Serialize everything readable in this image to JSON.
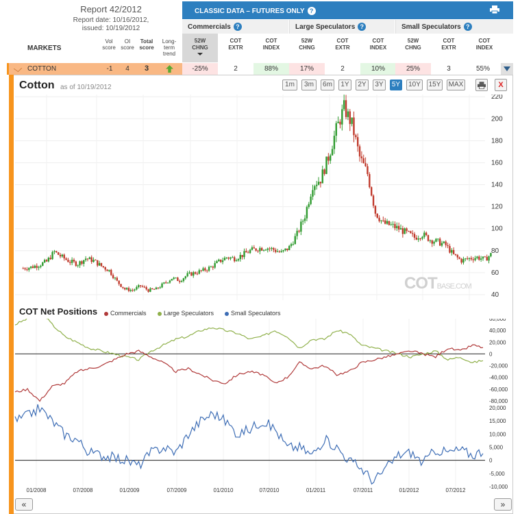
{
  "report": {
    "title": "Report 42/2012",
    "date_line": "Report date: 10/16/2012,",
    "issued_line": "issued: 10/19/2012",
    "markets_label": "MARKETS",
    "col_vol": [
      "Vol",
      "score"
    ],
    "col_oi": [
      "OI",
      "score"
    ],
    "col_total": [
      "Total",
      "score"
    ],
    "col_trend": [
      "Long-",
      "term",
      "trend"
    ]
  },
  "classic": {
    "title": "CLASSIC DATA – FUTURES ONLY",
    "help": "?",
    "groups": [
      "Commercials",
      "Large Speculators",
      "Small Speculators"
    ],
    "sub_headers": [
      [
        "52W",
        "CHNG"
      ],
      [
        "COT",
        "EXTR"
      ],
      [
        "COT",
        "INDEX"
      ]
    ]
  },
  "market_row": {
    "name": "COTTON",
    "vol_score": "-1",
    "oi_score": "4",
    "total_score": "3",
    "values": [
      "-25%",
      "2",
      "88%",
      "17%",
      "2",
      "10%",
      "25%",
      "3",
      "55%"
    ],
    "value_colors": [
      "#fde3e3",
      "#ffffff",
      "#e3f7e3",
      "#fde3e3",
      "#ffffff",
      "#e3f7e3",
      "#fde3e3",
      "#ffffff",
      "#ffffff"
    ]
  },
  "chart_header": {
    "title": "Cotton",
    "as_of": "as of 10/19/2012",
    "zoom": [
      "1m",
      "3m",
      "6m",
      "1Y",
      "2Y",
      "3Y",
      "5Y",
      "10Y",
      "15Y",
      "MAX"
    ],
    "active_zoom": "5Y",
    "print_icon": "printer-icon",
    "close_label": "X"
  },
  "cot_section": {
    "title": "COT Net Positions",
    "legend": [
      "Commercials",
      "Large Speculators",
      "Small Speculators"
    ]
  },
  "watermark": {
    "main": "COT",
    "sub": "BASE.COM"
  },
  "nav": {
    "prev": "«",
    "next": "»"
  },
  "colors": {
    "accent": "#2d7fbf",
    "orange": "#f7941d",
    "commercials": "#b03a3a",
    "large_spec": "#8fb04a",
    "small_spec": "#3d6db5",
    "candle_up": "#2e9a2e",
    "candle_down": "#c0392b"
  },
  "chart_data": [
    {
      "type": "candlestick",
      "title": "Cotton",
      "x_ticks": [
        "01/2008",
        "07/2008",
        "01/2009",
        "07/2009",
        "01/2010",
        "07/2010",
        "01/2011",
        "07/2011",
        "01/2012",
        "07/2012"
      ],
      "ylim": [
        35,
        222
      ],
      "y_ticks": [
        40,
        60,
        80,
        100,
        120,
        140,
        160,
        180,
        200,
        220
      ],
      "weekly_close": [
        [
          "2007-10",
          64
        ],
        [
          "2007-11",
          65
        ],
        [
          "2007-12",
          67
        ],
        [
          "2008-01",
          70
        ],
        [
          "2008-02",
          79
        ],
        [
          "2008-03",
          74
        ],
        [
          "2008-04",
          70
        ],
        [
          "2008-05",
          68
        ],
        [
          "2008-06",
          73
        ],
        [
          "2008-07",
          71
        ],
        [
          "2008-08",
          66
        ],
        [
          "2008-09",
          62
        ],
        [
          "2008-10",
          52
        ],
        [
          "2008-11",
          45
        ],
        [
          "2008-12",
          44
        ],
        [
          "2009-01",
          48
        ],
        [
          "2009-02",
          44
        ],
        [
          "2009-03",
          45
        ],
        [
          "2009-04",
          50
        ],
        [
          "2009-05",
          55
        ],
        [
          "2009-06",
          53
        ],
        [
          "2009-07",
          58
        ],
        [
          "2009-08",
          60
        ],
        [
          "2009-09",
          62
        ],
        [
          "2009-10",
          65
        ],
        [
          "2009-11",
          70
        ],
        [
          "2009-12",
          74
        ],
        [
          "2010-01",
          73
        ],
        [
          "2010-02",
          76
        ],
        [
          "2010-03",
          80
        ],
        [
          "2010-04",
          82
        ],
        [
          "2010-05",
          83
        ],
        [
          "2010-06",
          81
        ],
        [
          "2010-07",
          78
        ],
        [
          "2010-08",
          83
        ],
        [
          "2010-09",
          95
        ],
        [
          "2010-10",
          112
        ],
        [
          "2010-11",
          140
        ],
        [
          "2010-12",
          145
        ],
        [
          "2011-01",
          165
        ],
        [
          "2011-02",
          190
        ],
        [
          "2011-03",
          210
        ],
        [
          "2011-04",
          195
        ],
        [
          "2011-05",
          165
        ],
        [
          "2011-06",
          150
        ],
        [
          "2011-07",
          115
        ],
        [
          "2011-08",
          105
        ],
        [
          "2011-09",
          103
        ],
        [
          "2011-10",
          100
        ],
        [
          "2011-11",
          96
        ],
        [
          "2011-12",
          92
        ],
        [
          "2012-01",
          95
        ],
        [
          "2012-02",
          90
        ],
        [
          "2012-03",
          88
        ],
        [
          "2012-04",
          85
        ],
        [
          "2012-05",
          76
        ],
        [
          "2012-06",
          71
        ],
        [
          "2012-07",
          73
        ],
        [
          "2012-08",
          74
        ],
        [
          "2012-09",
          72
        ],
        [
          "2012-10",
          78
        ]
      ]
    },
    {
      "type": "line",
      "title": "COT Net Positions",
      "series": [
        {
          "name": "Commercials",
          "values": [
            -65,
            -60,
            -80,
            -55,
            -50,
            -30,
            -25,
            -20,
            -10,
            0,
            5,
            -5,
            -15,
            -30,
            -25,
            -35,
            -45,
            -50,
            -35,
            -30,
            -35,
            -50,
            -40,
            -15,
            -25,
            -20,
            -35,
            -30,
            -15,
            -10,
            -5,
            0,
            5,
            0,
            -5,
            10,
            5,
            15,
            10
          ]
        },
        {
          "name": "Large Speculators",
          "values": [
            50,
            60,
            75,
            50,
            30,
            20,
            10,
            5,
            0,
            -5,
            -10,
            5,
            15,
            25,
            30,
            40,
            45,
            40,
            35,
            25,
            30,
            40,
            30,
            10,
            25,
            25,
            40,
            35,
            15,
            10,
            5,
            0,
            -5,
            0,
            5,
            -10,
            -5,
            -15,
            -10
          ]
        }
      ],
      "y_ticks": [
        60000,
        40000,
        20000,
        0,
        -20000,
        -40000,
        -60000,
        -80000
      ],
      "ylim": [
        -80000,
        60000
      ]
    },
    {
      "type": "line",
      "series": [
        {
          "name": "Small Speculators",
          "values": [
            15,
            17,
            20,
            15,
            10,
            8,
            3,
            2,
            1,
            0,
            -2,
            3,
            5,
            3,
            10,
            15,
            18,
            15,
            10,
            12,
            15,
            12,
            5,
            5,
            2,
            8,
            5,
            0,
            -3,
            -8,
            -3,
            2,
            3,
            -1,
            4,
            3,
            4,
            2,
            4
          ]
        }
      ],
      "y_ticks": [
        20000,
        15000,
        10000,
        5000,
        0,
        -5000,
        -10000
      ],
      "ylim": [
        -10000,
        20000
      ]
    }
  ]
}
